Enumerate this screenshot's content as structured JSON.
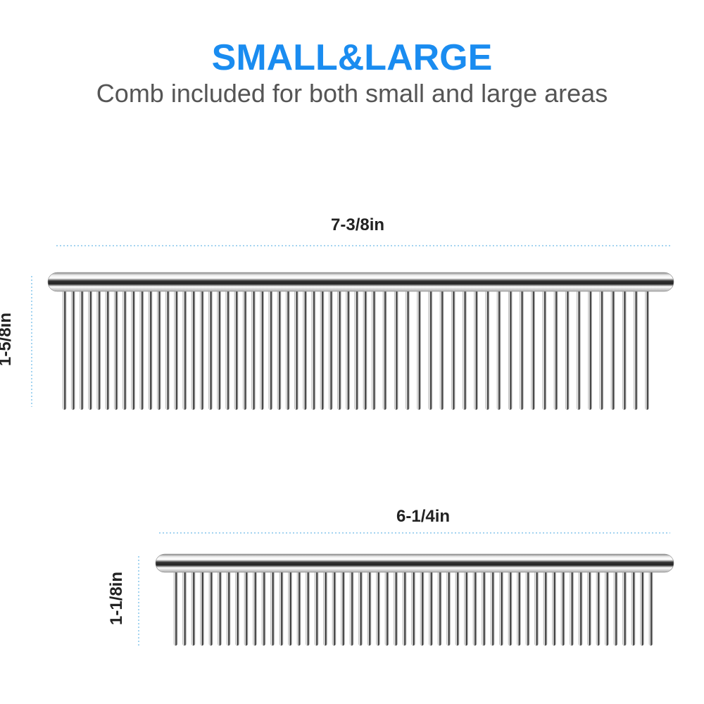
{
  "header": {
    "title": "SMALL&LARGE",
    "subtitle": "Comb included for both small and large areas"
  },
  "large_comb": {
    "width_label": "7-3/8in",
    "height_label": "1-5/8in"
  },
  "small_comb": {
    "width_label": "6-1/4in",
    "height_label": "1-1/8in"
  },
  "colors": {
    "title": "#1a8cf0",
    "subtitle": "#555555",
    "dimension_line": "#4aa8e0"
  }
}
